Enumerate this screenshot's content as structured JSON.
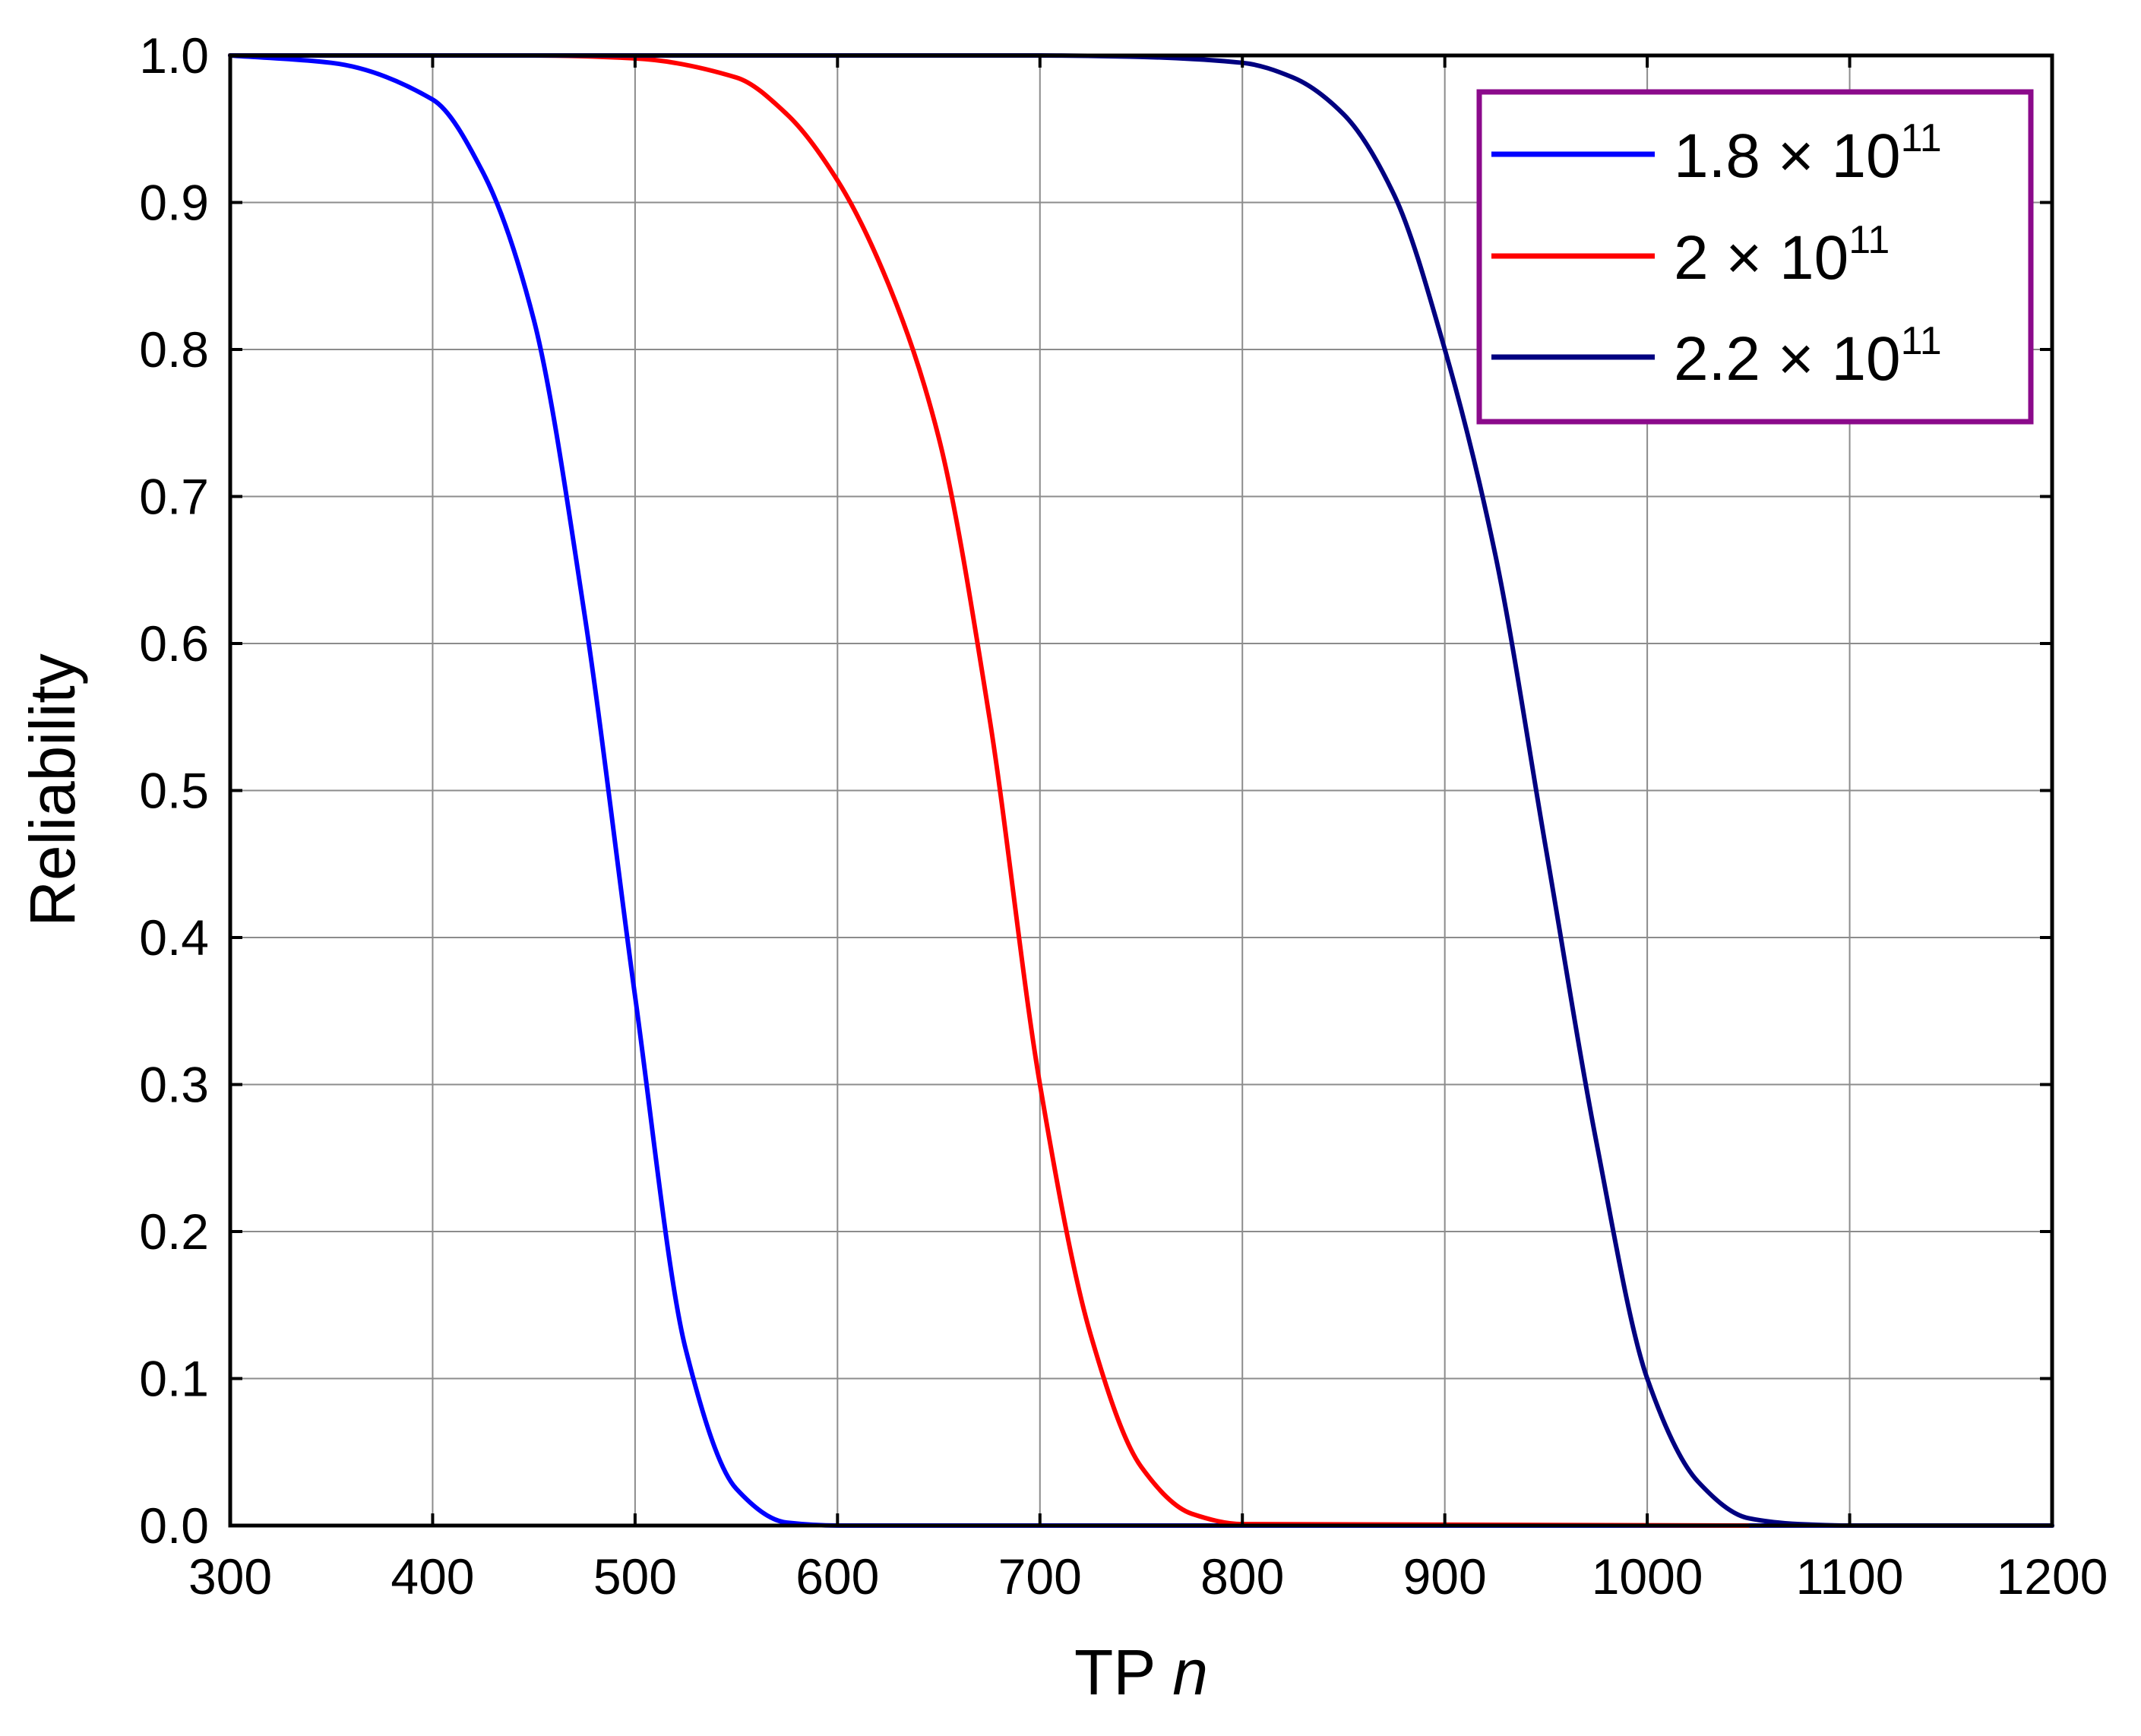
{
  "chart_data": {
    "type": "line",
    "title": "",
    "xlabel": "TP",
    "xlabel_var": "n",
    "ylabel": "Reliability",
    "xlim": [
      300,
      1200
    ],
    "ylim": [
      0.0,
      1.0
    ],
    "grid": true,
    "xticks": [
      300,
      400,
      500,
      600,
      700,
      800,
      900,
      1000,
      1100,
      1200
    ],
    "xtick_labels": [
      "300",
      "400",
      "500",
      "600",
      "700",
      "800",
      "900",
      "1000",
      "1100",
      "1200"
    ],
    "yticks": [
      0.0,
      0.1,
      0.2,
      0.3,
      0.4,
      0.5,
      0.6,
      0.7,
      0.8,
      0.9,
      1.0
    ],
    "ytick_labels": [
      "0.0",
      "0.1",
      "0.2",
      "0.3",
      "0.4",
      "0.5",
      "0.6",
      "0.7",
      "0.8",
      "0.9",
      "1.0"
    ],
    "legend": {
      "position": "top-right",
      "border_color": "#8b0a8b",
      "entries": [
        {
          "base": "1.8 × 10",
          "exp": "11"
        },
        {
          "base": "2 × 10",
          "exp": "11"
        },
        {
          "base": "2.2 × 10",
          "exp": "11"
        }
      ]
    },
    "series": [
      {
        "name": "1.8 × 10^11",
        "color": "#0000ff",
        "x": [
          300,
          350,
          400,
          425,
          450,
          475,
          500,
          525,
          550,
          575,
          600,
          1200
        ],
        "y": [
          1.0,
          0.995,
          0.97,
          0.92,
          0.82,
          0.62,
          0.36,
          0.12,
          0.025,
          0.002,
          0.0,
          0.0
        ]
      },
      {
        "name": "2 × 10^11",
        "color": "#ff0000",
        "x": [
          300,
          450,
          500,
          550,
          575,
          600,
          625,
          650,
          675,
          700,
          725,
          750,
          775,
          800,
          1050
        ],
        "y": [
          1.0,
          1.0,
          0.998,
          0.985,
          0.96,
          0.915,
          0.845,
          0.74,
          0.55,
          0.3,
          0.13,
          0.04,
          0.008,
          0.001,
          0.0
        ]
      },
      {
        "name": "2.2 × 10^11",
        "color": "#000080",
        "x": [
          300,
          700,
          750,
          800,
          825,
          850,
          875,
          900,
          925,
          950,
          975,
          1000,
          1025,
          1050,
          1075,
          1100,
          1200
        ],
        "y": [
          1.0,
          1.0,
          0.999,
          0.995,
          0.985,
          0.96,
          0.905,
          0.8,
          0.66,
          0.46,
          0.26,
          0.1,
          0.03,
          0.005,
          0.001,
          0.0,
          0.0
        ]
      }
    ]
  }
}
